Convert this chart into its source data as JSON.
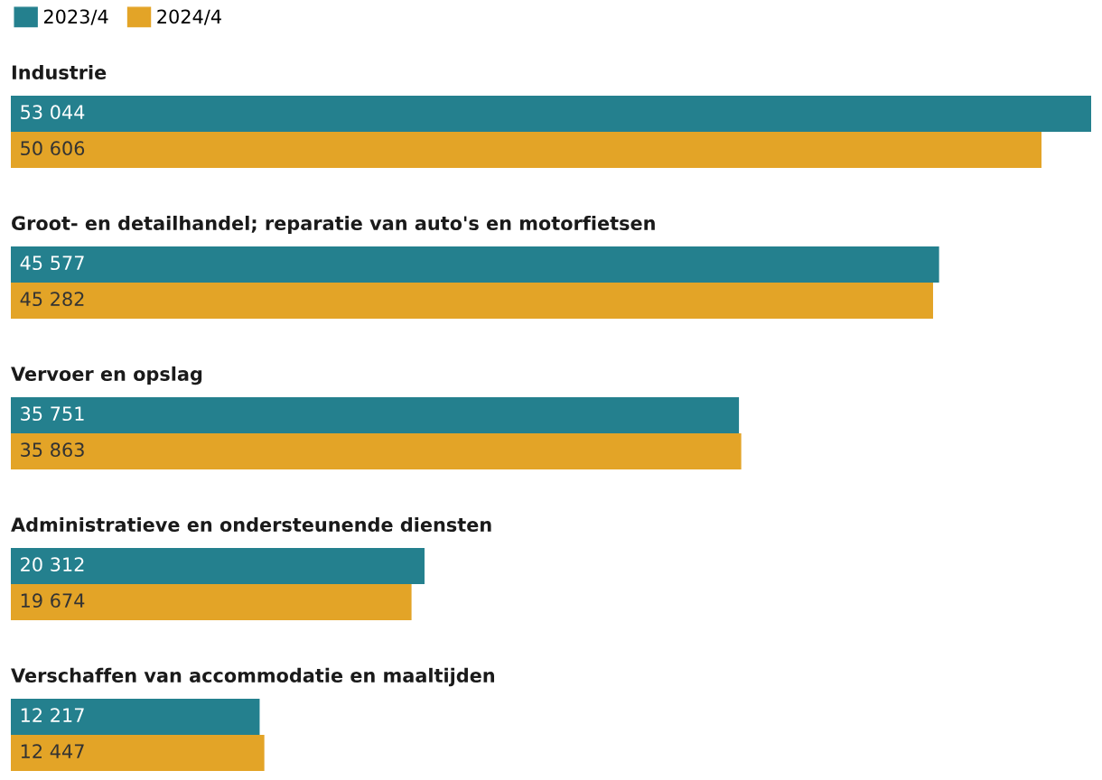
{
  "chart_data": {
    "type": "bar",
    "orientation": "horizontal",
    "legend": "top left",
    "categories": [
      "Industrie",
      "Groot- en detailhandel; reparatie van auto's en motorfietsen",
      "Vervoer en opslag",
      "Administratieve en ondersteunende diensten",
      "Verschaffen van accommodatie en maaltijden"
    ],
    "series": [
      {
        "name": "2023/4",
        "color": "#24808e",
        "values": [
          53044,
          45577,
          35751,
          20312,
          12217
        ],
        "value_labels": [
          "53 044",
          "45 577",
          "35 751",
          "20 312",
          "12 217"
        ]
      },
      {
        "name": "2024/4",
        "color": "#e3a427",
        "values": [
          50606,
          45282,
          35863,
          19674,
          12447
        ],
        "value_labels": [
          "50 606",
          "45 282",
          "35 863",
          "19 674",
          "12 447"
        ]
      }
    ]
  }
}
